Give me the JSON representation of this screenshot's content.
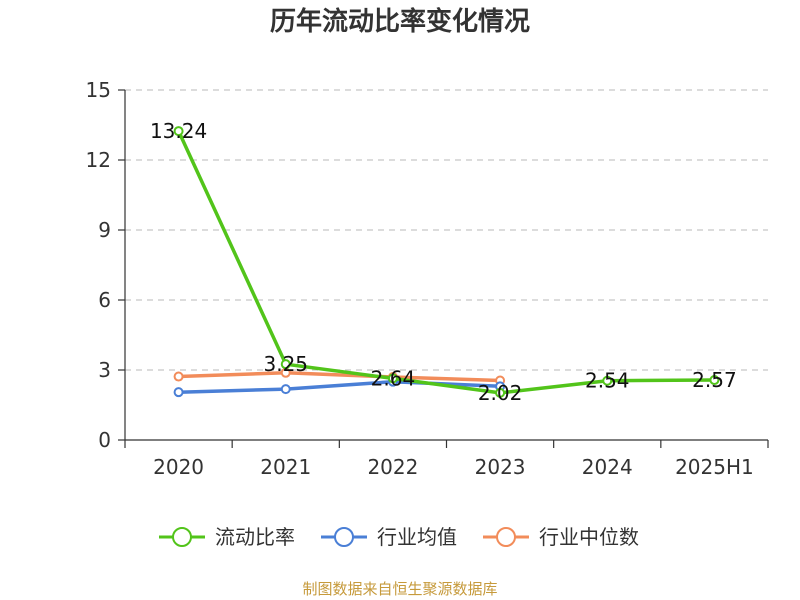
{
  "chart_data": {
    "type": "line",
    "title": "历年流动比率变化情况",
    "categories": [
      "2020",
      "2021",
      "2022",
      "2023",
      "2024",
      "2025H1"
    ],
    "ylim": [
      0,
      15
    ],
    "yticks": [
      "0",
      "3",
      "6",
      "9",
      "12",
      "15"
    ],
    "grid": true,
    "legend_position": "bottom",
    "series": [
      {
        "name": "流动比率",
        "color": "#52c41a",
        "values": [
          13.24,
          3.25,
          2.64,
          2.02,
          2.54,
          2.57
        ],
        "labels": [
          "13.24",
          "3.25",
          "2.64",
          "2.02",
          "2.54",
          "2.57"
        ]
      },
      {
        "name": "行业均值",
        "color": "#4a7fd6",
        "values": [
          2.05,
          2.18,
          2.5,
          2.3,
          null,
          null
        ]
      },
      {
        "name": "行业中位数",
        "color": "#f28c5a",
        "values": [
          2.72,
          2.88,
          2.7,
          2.55,
          null,
          null
        ]
      }
    ]
  },
  "source": "制图数据来自恒生聚源数据库"
}
